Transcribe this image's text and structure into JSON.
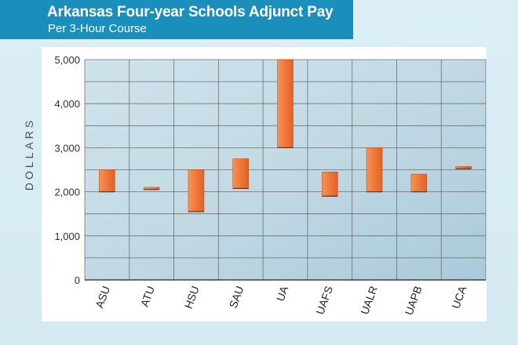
{
  "header": {
    "title": "Arkansas Four-year Schools Adjunct Pay",
    "subtitle": "Per 3-Hour Course"
  },
  "chart_data": {
    "type": "bar",
    "subtype": "floating-range",
    "title": "Arkansas Four-year Schools Adjunct Pay",
    "subtitle": "Per 3-Hour Course",
    "ylabel": "DOLLARS",
    "xlabel": "",
    "ylim": [
      0,
      5000
    ],
    "yticks": [
      0,
      1000,
      2000,
      3000,
      4000,
      5000
    ],
    "ytick_labels": [
      "0",
      "1,000",
      "2,000",
      "3,000",
      "4,000",
      "5,000"
    ],
    "grid": true,
    "categories": [
      "ASU",
      "ATU",
      "HSU",
      "SAU",
      "UA",
      "UAFS",
      "UALR",
      "UAPB",
      "UCA"
    ],
    "series": [
      {
        "low": [
          2000,
          2050,
          1550,
          2075,
          3000,
          1900,
          2000,
          2000,
          2525
        ],
        "high": [
          2500,
          2100,
          2500,
          2750,
          5000,
          2450,
          3000,
          2400,
          2575
        ]
      }
    ],
    "colors": {
      "bar": "#f07c3c",
      "bar_edge": "#c8531e",
      "plot_bg": "#c4dbe6",
      "grid": "#5a5f63",
      "header_bg": "#1a8fbc"
    }
  }
}
